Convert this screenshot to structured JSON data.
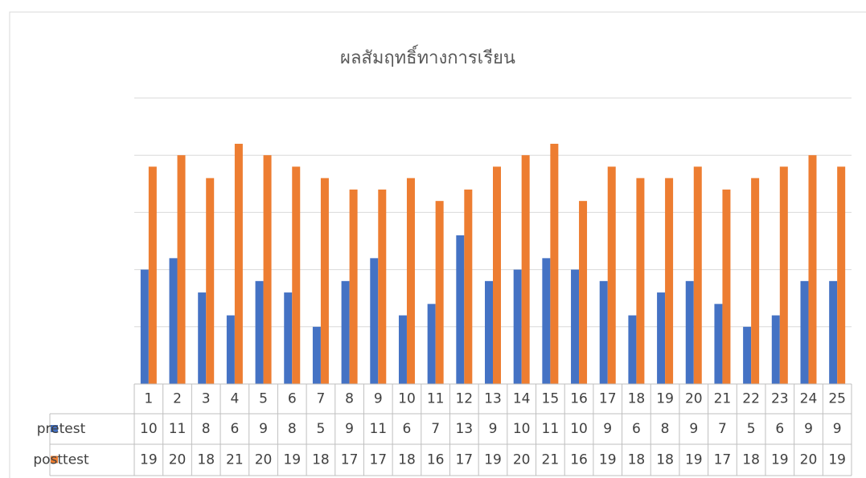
{
  "chart_data": {
    "type": "bar",
    "title": "ผลสัมฤทธิ์ทางการเรียน",
    "categories": [
      "1",
      "2",
      "3",
      "4",
      "5",
      "6",
      "7",
      "8",
      "9",
      "10",
      "11",
      "12",
      "13",
      "14",
      "15",
      "16",
      "17",
      "18",
      "19",
      "20",
      "21",
      "22",
      "23",
      "24",
      "25"
    ],
    "series": [
      {
        "name": "pretest",
        "color": "#4472c4",
        "values": [
          10,
          11,
          8,
          6,
          9,
          8,
          5,
          9,
          11,
          6,
          7,
          13,
          9,
          10,
          11,
          10,
          9,
          6,
          8,
          9,
          7,
          5,
          6,
          9,
          9
        ]
      },
      {
        "name": "posttest",
        "color": "#ed7d31",
        "values": [
          19,
          20,
          18,
          21,
          20,
          19,
          18,
          17,
          17,
          18,
          16,
          17,
          19,
          20,
          21,
          16,
          19,
          18,
          18,
          19,
          17,
          18,
          19,
          20,
          19
        ]
      }
    ],
    "ylim": [
      0,
      25
    ],
    "yticks": [
      0,
      5,
      10,
      15,
      20,
      25
    ],
    "grid": true
  }
}
